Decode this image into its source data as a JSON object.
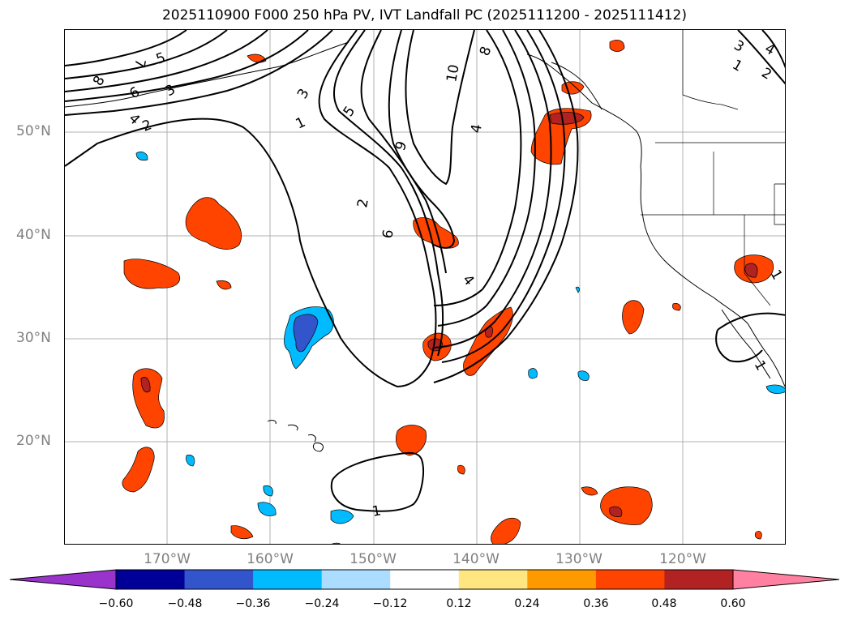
{
  "title": "2025110900 F000 250 hPa PV, IVT Landfall PC (2025111200 - 2025111412)",
  "lat_labels": [
    "50°N",
    "40°N",
    "30°N",
    "20°N"
  ],
  "lon_labels": [
    "170°W",
    "160°W",
    "150°W",
    "140°W",
    "130°W",
    "120°W"
  ],
  "contour_labels": [
    "1",
    "2",
    "3",
    "4",
    "5",
    "6",
    "7",
    "8",
    "9",
    "10"
  ],
  "colorbar": {
    "ticks": [
      "−0.60",
      "−0.48",
      "−0.36",
      "−0.24",
      "−0.12",
      "0.12",
      "0.24",
      "0.36",
      "0.48",
      "0.60"
    ],
    "colors": [
      "#9933cc",
      "#000099",
      "#3355cc",
      "#00bbff",
      "#aaddff",
      "#ffffff",
      "#ffe680",
      "#ff9900",
      "#ff4400",
      "#b22222",
      "#ff80a0"
    ]
  }
}
